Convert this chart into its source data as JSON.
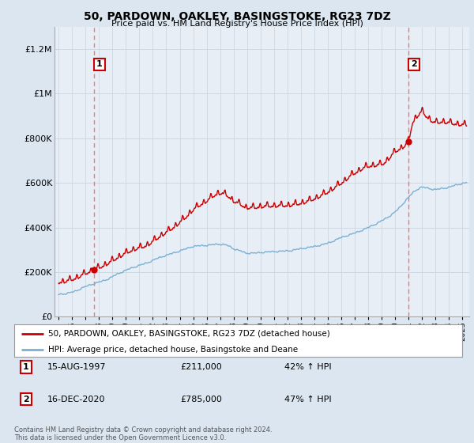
{
  "title": "50, PARDOWN, OAKLEY, BASINGSTOKE, RG23 7DZ",
  "subtitle": "Price paid vs. HM Land Registry's House Price Index (HPI)",
  "ylabel_ticks": [
    "£0",
    "£200K",
    "£400K",
    "£600K",
    "£800K",
    "£1M",
    "£1.2M"
  ],
  "ytick_values": [
    0,
    200000,
    400000,
    600000,
    800000,
    1000000,
    1200000
  ],
  "ylim": [
    0,
    1300000
  ],
  "xlim_start": 1994.7,
  "xlim_end": 2025.5,
  "sale1_x": 1997.62,
  "sale1_y": 211000,
  "sale1_label": "1",
  "sale2_x": 2020.96,
  "sale2_y": 785000,
  "sale2_label": "2",
  "house_color": "#cc0000",
  "hpi_color": "#7ab0d4",
  "vline_color": "#ff6666",
  "annotation_box_color": "#cc0000",
  "legend_house": "50, PARDOWN, OAKLEY, BASINGSTOKE, RG23 7DZ (detached house)",
  "legend_hpi": "HPI: Average price, detached house, Basingstoke and Deane",
  "note1_label": "1",
  "note1_date": "15-AUG-1997",
  "note1_price": "£211,000",
  "note1_hpi": "42% ↑ HPI",
  "note2_label": "2",
  "note2_date": "16-DEC-2020",
  "note2_price": "£785,000",
  "note2_hpi": "47% ↑ HPI",
  "footer": "Contains HM Land Registry data © Crown copyright and database right 2024.\nThis data is licensed under the Open Government Licence v3.0.",
  "bg_color": "#dce6f0",
  "plot_bg_color": "#e8eef5"
}
